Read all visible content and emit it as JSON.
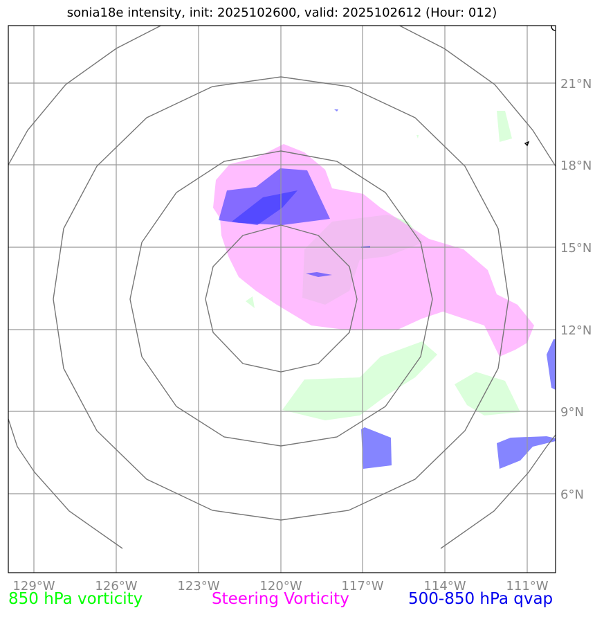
{
  "title": "sonia18e intensity, init: 2025102600, valid: 2025102612 (Hour: 012)",
  "axes": {
    "lon_labels": [
      "129°W",
      "126°W",
      "123°W",
      "120°W",
      "117°W",
      "114°W",
      "111°W"
    ],
    "lat_labels": [
      "21°N",
      "18°N",
      "15°N",
      "12°N",
      "9°N",
      "6°N"
    ]
  },
  "legend": {
    "left": "850 hPa vorticity",
    "center": "Steering Vorticity",
    "right": "500-850 hPa qvap"
  },
  "colors": {
    "vorticity_850": "#ccffcc",
    "steering_vorticity": "#ff99ff",
    "qvap": "#3333ff",
    "grid": "#999999",
    "range_rings": "#777777"
  }
}
